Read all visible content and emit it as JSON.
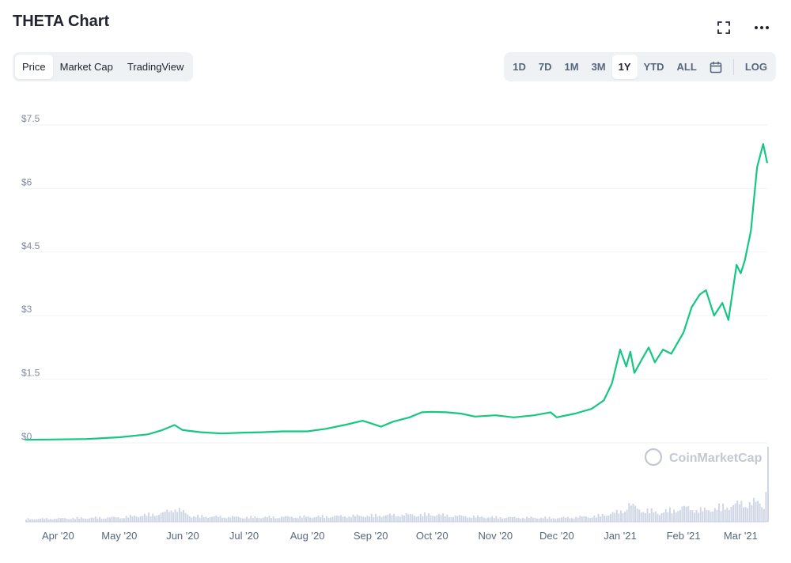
{
  "header": {
    "title": "THETA Chart",
    "fullscreen_icon": "expand-icon",
    "more_icon": "more-horizontal-icon"
  },
  "view_tabs": [
    {
      "label": "Price",
      "active": true
    },
    {
      "label": "Market Cap",
      "active": false
    },
    {
      "label": "TradingView",
      "active": false
    }
  ],
  "range_tabs": [
    {
      "label": "1D",
      "active": false
    },
    {
      "label": "7D",
      "active": false
    },
    {
      "label": "1M",
      "active": false
    },
    {
      "label": "3M",
      "active": false
    },
    {
      "label": "1Y",
      "active": true
    },
    {
      "label": "YTD",
      "active": false
    },
    {
      "label": "ALL",
      "active": false
    }
  ],
  "calendar_icon": "calendar-icon",
  "log_label": "LOG",
  "watermark": "CoinMarketCap",
  "colors": {
    "line": "#16c784",
    "volume": "#cfd6e4",
    "accent": "#222531"
  },
  "chart_data": {
    "type": "line",
    "x_axis_labels": [
      "Apr '20",
      "May '20",
      "Jun '20",
      "Jul '20",
      "Aug '20",
      "Sep '20",
      "Oct '20",
      "Nov '20",
      "Dec '20",
      "Jan '21",
      "Feb '21",
      "Mar '21"
    ],
    "y_axis_labels": [
      "$7.5",
      "$6",
      "$4.5",
      "$3",
      "$1.5",
      "$0"
    ],
    "ylim": [
      0,
      7.5
    ],
    "grid": true,
    "series": [
      {
        "kind": "price",
        "x": [
          "2020-03-16",
          "2020-04-01",
          "2020-04-15",
          "2020-05-01",
          "2020-05-15",
          "2020-05-22",
          "2020-05-28",
          "2020-06-01",
          "2020-06-10",
          "2020-06-20",
          "2020-07-01",
          "2020-07-10",
          "2020-07-20",
          "2020-08-01",
          "2020-08-10",
          "2020-08-20",
          "2020-08-28",
          "2020-09-01",
          "2020-09-06",
          "2020-09-12",
          "2020-09-20",
          "2020-09-26",
          "2020-10-01",
          "2020-10-08",
          "2020-10-15",
          "2020-10-22",
          "2020-11-01",
          "2020-11-10",
          "2020-11-20",
          "2020-11-28",
          "2020-12-01",
          "2020-12-10",
          "2020-12-18",
          "2020-12-24",
          "2020-12-28",
          "2021-01-01",
          "2021-01-04",
          "2021-01-06",
          "2021-01-08",
          "2021-01-12",
          "2021-01-15",
          "2021-01-18",
          "2021-01-22",
          "2021-01-26",
          "2021-02-01",
          "2021-02-05",
          "2021-02-09",
          "2021-02-12",
          "2021-02-16",
          "2021-02-20",
          "2021-02-23",
          "2021-02-27",
          "2021-03-01",
          "2021-03-03",
          "2021-03-06",
          "2021-03-09",
          "2021-03-12",
          "2021-03-14"
        ],
        "values": [
          0.07,
          0.08,
          0.09,
          0.13,
          0.2,
          0.3,
          0.42,
          0.3,
          0.25,
          0.22,
          0.24,
          0.25,
          0.27,
          0.27,
          0.33,
          0.43,
          0.52,
          0.46,
          0.38,
          0.5,
          0.6,
          0.72,
          0.73,
          0.72,
          0.69,
          0.62,
          0.65,
          0.6,
          0.65,
          0.72,
          0.6,
          0.69,
          0.8,
          1.0,
          1.4,
          2.2,
          1.8,
          2.15,
          1.65,
          2.0,
          2.25,
          1.9,
          2.2,
          2.1,
          2.6,
          3.2,
          3.5,
          3.6,
          3.0,
          3.3,
          2.9,
          4.2,
          4.0,
          4.3,
          5.0,
          6.5,
          7.05,
          6.6
        ]
      },
      {
        "kind": "volume",
        "x": [
          "2020-03-16",
          "2020-04-01",
          "2020-05-01",
          "2020-05-22",
          "2020-05-28",
          "2020-06-05",
          "2020-07-01",
          "2020-08-01",
          "2020-09-01",
          "2020-09-10",
          "2020-10-01",
          "2020-10-15",
          "2020-11-01",
          "2020-12-01",
          "2020-12-20",
          "2021-01-01",
          "2021-01-05",
          "2021-01-10",
          "2021-01-20",
          "2021-02-01",
          "2021-02-10",
          "2021-02-20",
          "2021-03-01",
          "2021-03-08",
          "2021-03-12",
          "2021-03-14"
        ],
        "values": [
          0.5,
          0.6,
          0.8,
          1.5,
          2.4,
          1.0,
          0.8,
          0.9,
          1.1,
          1.2,
          1.3,
          1.0,
          0.8,
          0.7,
          1.0,
          1.8,
          3.0,
          2.2,
          1.6,
          2.5,
          2.0,
          2.6,
          3.2,
          3.4,
          3.0,
          10.0
        ]
      }
    ]
  }
}
